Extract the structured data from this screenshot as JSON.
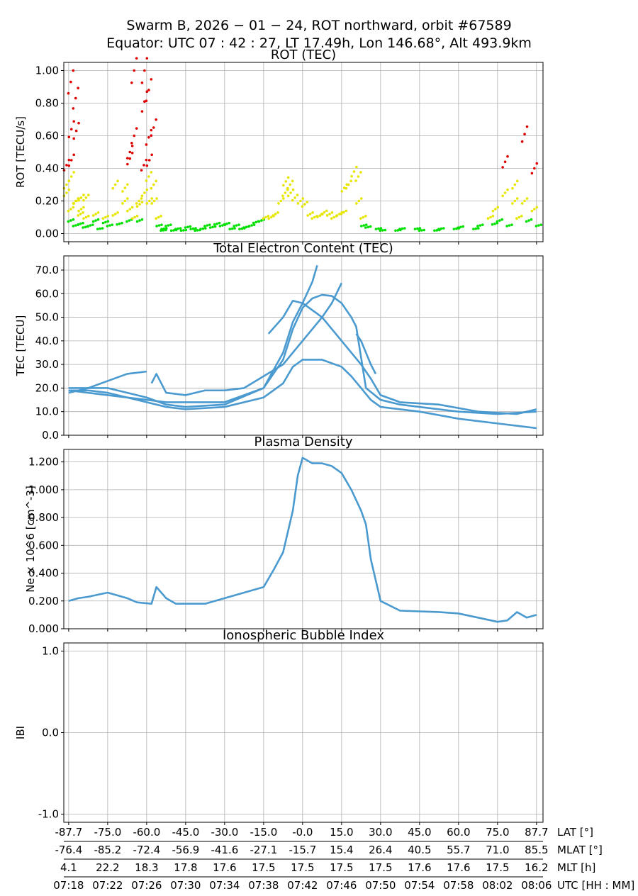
{
  "title_line1": "Swarm B,  2026 − 01 − 24,  ROT northward,  orbit #67589",
  "title_line2": "Equator:  UTC 07 : 42 : 27,  LT 17.49h,  Lon 146.68°,  Alt 493.9km",
  "colors": {
    "rot_low": "#00e000",
    "rot_mid": "#e6e600",
    "rot_high": "#e00000",
    "line": "#4a9ad0",
    "grid": "#b0b0b0"
  },
  "x_axis": {
    "time_range": [
      "07:17:30",
      "08:06:40"
    ],
    "rows": [
      {
        "label": "LAT [°]",
        "ticks": [
          "-87.7",
          "-75.0",
          "-60.0",
          "-45.0",
          "-30.0",
          "-15.0",
          "-0.0",
          "15.0",
          "30.0",
          "45.0",
          "60.0",
          "75.0",
          "87.7"
        ]
      },
      {
        "label": "MLAT [°]",
        "ticks": [
          "-76.4",
          "-85.2",
          "-72.4",
          "-56.9",
          "-41.6",
          "-27.1",
          "-15.7",
          "15.4",
          "26.4",
          "40.5",
          "55.7",
          "71.0",
          "85.5"
        ]
      },
      {
        "label": "MLT [h]",
        "ticks": [
          "4.1",
          "22.2",
          "18.3",
          "17.8",
          "17.6",
          "17.5",
          "17.5",
          "17.5",
          "17.5",
          "17.6",
          "17.6",
          "17.5",
          "16.2"
        ]
      },
      {
        "label": "UTC [HH : MM]",
        "ticks": [
          "07:18",
          "07:22",
          "07:26",
          "07:30",
          "07:34",
          "07:38",
          "07:42",
          "07:46",
          "07:50",
          "07:54",
          "07:58",
          "08:02",
          "08:06"
        ]
      }
    ]
  },
  "chart_data": [
    {
      "type": "scatter",
      "title": "ROT (TEC)",
      "ylabel": "ROT [TECU/s]",
      "ylim": [
        -0.05,
        1.05
      ],
      "yticks": [
        "0.00",
        "0.20",
        "0.40",
        "0.60",
        "0.80",
        "1.00"
      ],
      "grid": true,
      "color_thresholds": [
        0.1,
        0.4
      ],
      "points": [
        [
          "07:18:00",
          [
            0.25,
            0.08,
            0.42,
            0.93,
            0.3,
            0.15
          ]
        ],
        [
          "07:18:30",
          [
            0.35,
            0.05,
            0.64,
            0.83,
            0.45,
            0.2
          ]
        ],
        [
          "07:19:00",
          [
            0.2,
            0.06,
            0.63,
            0.12
          ]
        ],
        [
          "07:19:30",
          [
            0.15,
            0.04,
            0.22
          ]
        ],
        [
          "07:20:00",
          [
            0.1,
            0.05,
            0.22
          ]
        ],
        [
          "07:21:00",
          [
            0.08,
            0.03,
            0.12
          ]
        ],
        [
          "07:22:00",
          [
            0.1,
            0.05,
            0.07
          ]
        ],
        [
          "07:23:00",
          [
            0.12,
            0.06,
            0.3
          ]
        ],
        [
          "07:24:00",
          [
            0.2,
            0.08,
            0.28
          ]
        ],
        [
          "07:24:30",
          [
            0.46,
            0.6,
            0.5,
            1.0,
            0.15
          ]
        ],
        [
          "07:25:00",
          [
            0.1,
            0.2
          ]
        ],
        [
          "07:25:30",
          [
            0.18,
            0.42,
            0.08
          ]
        ],
        [
          "07:26:00",
          [
            0.25,
            0.35,
            1.0,
            0.88,
            0.81,
            0.59
          ]
        ],
        [
          "07:26:30",
          [
            0.2,
            0.65,
            0.45,
            0.3
          ]
        ],
        [
          "07:27:00",
          [
            0.2,
            0.1
          ]
        ],
        [
          "07:27:30",
          [
            0.05,
            0.02
          ]
        ],
        [
          "07:28:00",
          [
            0.03,
            0.05
          ]
        ],
        [
          "07:29:00",
          [
            0.02,
            0.03
          ]
        ],
        [
          "07:30:00",
          [
            0.02,
            0.04
          ]
        ],
        [
          "07:31:00",
          [
            0.03,
            0.02
          ]
        ],
        [
          "07:32:00",
          [
            0.03,
            0.05
          ]
        ],
        [
          "07:33:00",
          [
            0.04,
            0.06
          ]
        ],
        [
          "07:34:00",
          [
            0.05,
            0.06
          ]
        ],
        [
          "07:35:00",
          [
            0.03,
            0.05
          ]
        ],
        [
          "07:36:00",
          [
            0.03,
            0.04
          ]
        ],
        [
          "07:37:00",
          [
            0.05,
            0.07
          ]
        ],
        [
          "07:38:00",
          [
            0.08,
            0.1
          ]
        ],
        [
          "07:39:00",
          [
            0.1,
            0.12
          ]
        ],
        [
          "07:40:00",
          [
            0.2,
            0.25
          ]
        ],
        [
          "07:40:30",
          [
            0.32,
            0.3
          ]
        ],
        [
          "07:41:00",
          [
            0.25,
            0.22
          ]
        ],
        [
          "07:42:00",
          [
            0.2,
            0.18
          ]
        ],
        [
          "07:43:00",
          [
            0.12,
            0.1
          ]
        ],
        [
          "07:44:00",
          [
            0.11,
            0.13
          ]
        ],
        [
          "07:45:00",
          [
            0.12,
            0.1
          ]
        ],
        [
          "07:46:00",
          [
            0.12,
            0.13
          ]
        ],
        [
          "07:46:30",
          [
            0.28,
            0.3
          ]
        ],
        [
          "07:47:30",
          [
            0.38,
            0.35
          ]
        ],
        [
          "07:48:00",
          [
            0.2,
            0.1
          ]
        ],
        [
          "07:48:30",
          [
            0.05,
            0.04
          ]
        ],
        [
          "07:50:00",
          [
            0.03,
            0.02
          ]
        ],
        [
          "07:52:00",
          [
            0.02,
            0.03
          ]
        ],
        [
          "07:54:00",
          [
            0.03,
            0.02
          ]
        ],
        [
          "07:56:00",
          [
            0.02,
            0.03
          ]
        ],
        [
          "07:58:00",
          [
            0.03,
            0.04
          ]
        ],
        [
          "08:00:00",
          [
            0.03,
            0.05
          ]
        ],
        [
          "08:01:30",
          [
            0.1,
            0.06
          ]
        ],
        [
          "08:02:00",
          [
            0.15,
            0.08
          ]
        ],
        [
          "08:03:00",
          [
            0.25,
            0.05,
            0.44
          ]
        ],
        [
          "08:04:00",
          [
            0.3,
            0.1,
            0.2
          ]
        ],
        [
          "08:05:00",
          [
            0.2,
            0.08,
            0.61
          ]
        ],
        [
          "08:06:00",
          [
            0.15,
            0.05,
            0.4
          ]
        ]
      ]
    },
    {
      "type": "line",
      "title": "Total Electron Content (TEC)",
      "ylabel": "TEC [TECU]",
      "ylim": [
        0,
        76
      ],
      "yticks": [
        "0.0",
        "10.0",
        "20.0",
        "30.0",
        "40.0",
        "50.0",
        "60.0",
        "70.0"
      ],
      "grid": true,
      "series": [
        {
          "points": [
            [
              "07:18",
              19
            ],
            [
              "07:20",
              19
            ],
            [
              "07:22",
              18
            ],
            [
              "07:24",
              16
            ],
            [
              "07:26",
              14
            ],
            [
              "07:28",
              12
            ],
            [
              "07:30",
              11
            ],
            [
              "07:34",
              12
            ],
            [
              "07:38",
              16
            ],
            [
              "07:40",
              22
            ],
            [
              "07:41",
              29
            ],
            [
              "07:42",
              32
            ],
            [
              "07:44",
              32
            ],
            [
              "07:46",
              29
            ],
            [
              "07:47",
              25
            ],
            [
              "07:48",
              20
            ],
            [
              "07:49",
              15
            ],
            [
              "07:50",
              12
            ],
            [
              "07:54",
              10
            ],
            [
              "07:58",
              7
            ],
            [
              "08:00",
              6
            ],
            [
              "08:02",
              5
            ],
            [
              "08:04",
              4
            ],
            [
              "08:06",
              3
            ]
          ]
        },
        {
          "points": [
            [
              "07:18",
              20
            ],
            [
              "07:22",
              20
            ],
            [
              "07:26",
              16
            ],
            [
              "07:28",
              13
            ],
            [
              "07:30",
              12
            ],
            [
              "07:34",
              13
            ],
            [
              "07:38",
              20
            ],
            [
              "07:40",
              32
            ],
            [
              "07:41",
              45
            ],
            [
              "07:42",
              54
            ],
            [
              "07:43",
              58
            ],
            [
              "07:44",
              59.5
            ],
            [
              "07:45",
              59
            ],
            [
              "07:46",
              56
            ],
            [
              "07:47",
              50
            ],
            [
              "07:47:30",
              46
            ],
            [
              "07:48:30",
              20
            ],
            [
              "07:50",
              15
            ],
            [
              "07:52",
              13
            ],
            [
              "07:54",
              12
            ],
            [
              "07:58",
              10
            ],
            [
              "08:02",
              9
            ],
            [
              "08:06",
              10
            ]
          ]
        },
        {
          "points": [
            [
              "07:18",
              19
            ],
            [
              "07:26",
              15
            ],
            [
              "07:28",
              14
            ],
            [
              "07:34",
              14
            ],
            [
              "07:38",
              20
            ],
            [
              "07:40",
              35
            ],
            [
              "07:41",
              48
            ],
            [
              "07:42",
              56
            ],
            [
              "07:43",
              65
            ],
            [
              "07:43:30",
              72
            ]
          ]
        },
        {
          "points": [
            [
              "07:38:30",
              43
            ],
            [
              "07:40",
              50
            ],
            [
              "07:41",
              57
            ],
            [
              "07:42",
              56
            ],
            [
              "07:44",
              50
            ],
            [
              "07:46",
              40
            ],
            [
              "07:48",
              30
            ],
            [
              "07:49",
              24
            ],
            [
              "07:50",
              17
            ],
            [
              "07:52",
              14
            ],
            [
              "07:56",
              13
            ],
            [
              "08:00",
              10
            ],
            [
              "08:04",
              9
            ],
            [
              "08:06",
              11
            ]
          ]
        },
        {
          "points": [
            [
              "07:18",
              18
            ],
            [
              "07:20",
              20
            ],
            [
              "07:22",
              23
            ],
            [
              "07:24",
              26
            ],
            [
              "07:26",
              27
            ]
          ]
        },
        {
          "points": [
            [
              "07:26:30",
              22
            ],
            [
              "07:27",
              26
            ],
            [
              "07:28",
              18
            ],
            [
              "07:30",
              17
            ],
            [
              "07:32",
              19
            ],
            [
              "07:34",
              19
            ],
            [
              "07:36",
              20
            ],
            [
              "07:38",
              25
            ],
            [
              "07:40",
              30
            ],
            [
              "07:42",
              40
            ],
            [
              "07:44",
              50
            ],
            [
              "07:45",
              56
            ],
            [
              "07:46",
              64.5
            ]
          ]
        },
        {
          "points": [
            [
              "07:47:30",
              43
            ],
            [
              "07:48",
              40
            ],
            [
              "07:49",
              30
            ],
            [
              "07:49:30",
              26
            ]
          ]
        }
      ]
    },
    {
      "type": "line",
      "title": "Plasma Density",
      "ylabel": "Ne × 10^6 [cm^-3]",
      "ylim": [
        0,
        1.29
      ],
      "yticks": [
        "0.000",
        "0.200",
        "0.400",
        "0.600",
        "0.800",
        "1.000",
        "1.200"
      ],
      "grid": true,
      "series": [
        {
          "points": [
            [
              "07:18",
              0.2
            ],
            [
              "07:19",
              0.22
            ],
            [
              "07:20",
              0.23
            ],
            [
              "07:22",
              0.26
            ],
            [
              "07:24",
              0.22
            ],
            [
              "07:25",
              0.19
            ],
            [
              "07:26:30",
              0.18
            ],
            [
              "07:27",
              0.3
            ],
            [
              "07:28",
              0.22
            ],
            [
              "07:29",
              0.18
            ],
            [
              "07:32",
              0.18
            ],
            [
              "07:34",
              0.22
            ],
            [
              "07:36",
              0.26
            ],
            [
              "07:38",
              0.3
            ],
            [
              "07:39",
              0.42
            ],
            [
              "07:40",
              0.55
            ],
            [
              "07:41",
              0.85
            ],
            [
              "07:41:30",
              1.1
            ],
            [
              "07:42",
              1.23
            ],
            [
              "07:43",
              1.19
            ],
            [
              "07:44",
              1.19
            ],
            [
              "07:45",
              1.17
            ],
            [
              "07:46",
              1.12
            ],
            [
              "07:47",
              1.0
            ],
            [
              "07:48",
              0.85
            ],
            [
              "07:48:30",
              0.75
            ],
            [
              "07:49",
              0.5
            ],
            [
              "07:50",
              0.2
            ],
            [
              "07:52",
              0.13
            ],
            [
              "07:56",
              0.12
            ],
            [
              "07:58",
              0.11
            ],
            [
              "08:00",
              0.08
            ],
            [
              "08:02",
              0.05
            ],
            [
              "08:03",
              0.06
            ],
            [
              "08:04",
              0.12
            ],
            [
              "08:05",
              0.08
            ],
            [
              "08:06",
              0.1
            ]
          ]
        }
      ]
    },
    {
      "type": "line",
      "title": "Ionospheric Bubble Index",
      "ylabel": "IBI",
      "ylim": [
        -1.1,
        1.1
      ],
      "yticks": [
        "-1.0",
        "0.0",
        "1.0"
      ],
      "grid": true,
      "series": []
    }
  ]
}
